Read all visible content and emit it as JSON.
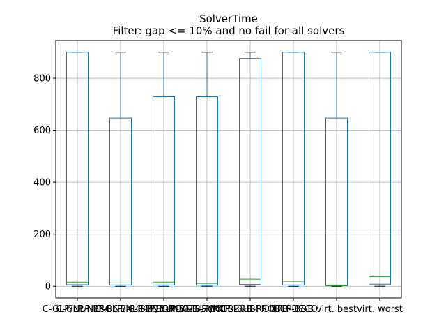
{
  "chart_data": {
    "type": "box",
    "title": "SolverTime",
    "subtitle": "Filter: gap <= 10% and no fail for all solvers",
    "categories": [
      "C-GLP/NLP-B&B",
      "C-GLP/NLP-B&B-ROOTBONLY",
      "C-GLP/NLP-B&B-ROOTB-ACYCL",
      "C-GLP/NLP-B&B-ROOTB-SUBPROBL",
      "C-GLP/NLP-B&B-ROOTB-DECO",
      "HCP-B&B",
      "virt. best",
      "virt. worst"
    ],
    "boxes": [
      {
        "whislo": 0,
        "q1": 6,
        "med": 16,
        "q3": 900,
        "whishi": 900
      },
      {
        "whislo": 0,
        "q1": 5,
        "med": 13,
        "q3": 647,
        "whishi": 900
      },
      {
        "whislo": 0,
        "q1": 5,
        "med": 16,
        "q3": 729,
        "whishi": 900
      },
      {
        "whislo": 0,
        "q1": 4,
        "med": 11,
        "q3": 729,
        "whishi": 900
      },
      {
        "whislo": 0,
        "q1": 7,
        "med": 27,
        "q3": 876,
        "whishi": 900
      },
      {
        "whislo": 0,
        "q1": 5,
        "med": 19,
        "q3": 900,
        "whishi": 900
      },
      {
        "whislo": 0,
        "q1": 2,
        "med": 5,
        "q3": 647,
        "whishi": 900
      },
      {
        "whislo": 0,
        "q1": 8,
        "med": 37,
        "q3": 900,
        "whishi": 900
      }
    ],
    "xlabel": "",
    "ylabel": "",
    "ylim": [
      -45,
      945
    ],
    "yticks": [
      0,
      200,
      400,
      600,
      800
    ],
    "grid": true,
    "colors": {
      "box": "#1f77b4",
      "median": "#2ca02c",
      "whisker_cap": "#000000",
      "grid": "#b0b0b0"
    }
  }
}
